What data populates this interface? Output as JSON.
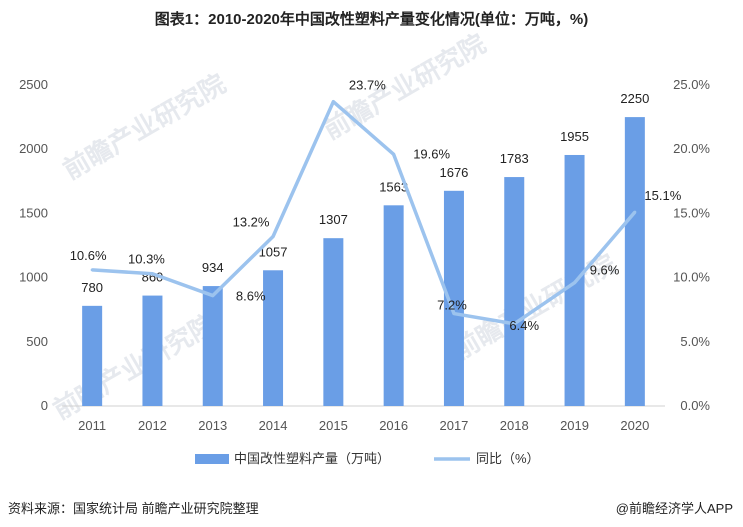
{
  "title": "图表1：2010-2020年中国改性塑料产量变化情况(单位：万吨，%)",
  "source_note": "资料来源：国家统计局 前瞻产业研究院整理",
  "brand": "@前瞻经济学人APP",
  "watermark": "前瞻产业研究院",
  "colors": {
    "bar": "#6a9ee6",
    "line": "#9cc3ee",
    "axis_text": "#555555"
  },
  "chart_data": {
    "type": "bar",
    "categories": [
      "2011",
      "2012",
      "2013",
      "2014",
      "2015",
      "2016",
      "2017",
      "2018",
      "2019",
      "2020"
    ],
    "series": [
      {
        "name": "中国改性塑料产量（万吨）",
        "type": "bar",
        "axis": "left",
        "values": [
          780,
          860,
          934,
          1057,
          1307,
          1563,
          1676,
          1783,
          1955,
          2250
        ],
        "labels": [
          "780",
          "860",
          "934",
          "1057",
          "1307",
          "1563",
          "1676",
          "1783",
          "1955",
          "2250"
        ]
      },
      {
        "name": "同比（%）",
        "type": "line",
        "axis": "right",
        "values": [
          10.6,
          10.3,
          8.6,
          13.2,
          23.7,
          19.6,
          7.2,
          6.4,
          9.6,
          15.1
        ],
        "labels": [
          "10.6%",
          "10.3%",
          "8.6%",
          "13.2%",
          "23.7%",
          "19.6%",
          "7.2%",
          "6.4%",
          "9.6%",
          "15.1%"
        ]
      }
    ],
    "y_left": {
      "min": 0,
      "max": 2500,
      "ticks": [
        "0",
        "500",
        "1000",
        "1500",
        "2000",
        "2500"
      ]
    },
    "y_right": {
      "min": 0,
      "max": 25,
      "ticks": [
        "0.0%",
        "5.0%",
        "10.0%",
        "15.0%",
        "20.0%",
        "25.0%"
      ]
    },
    "legend_position": "bottom",
    "grid": false
  }
}
